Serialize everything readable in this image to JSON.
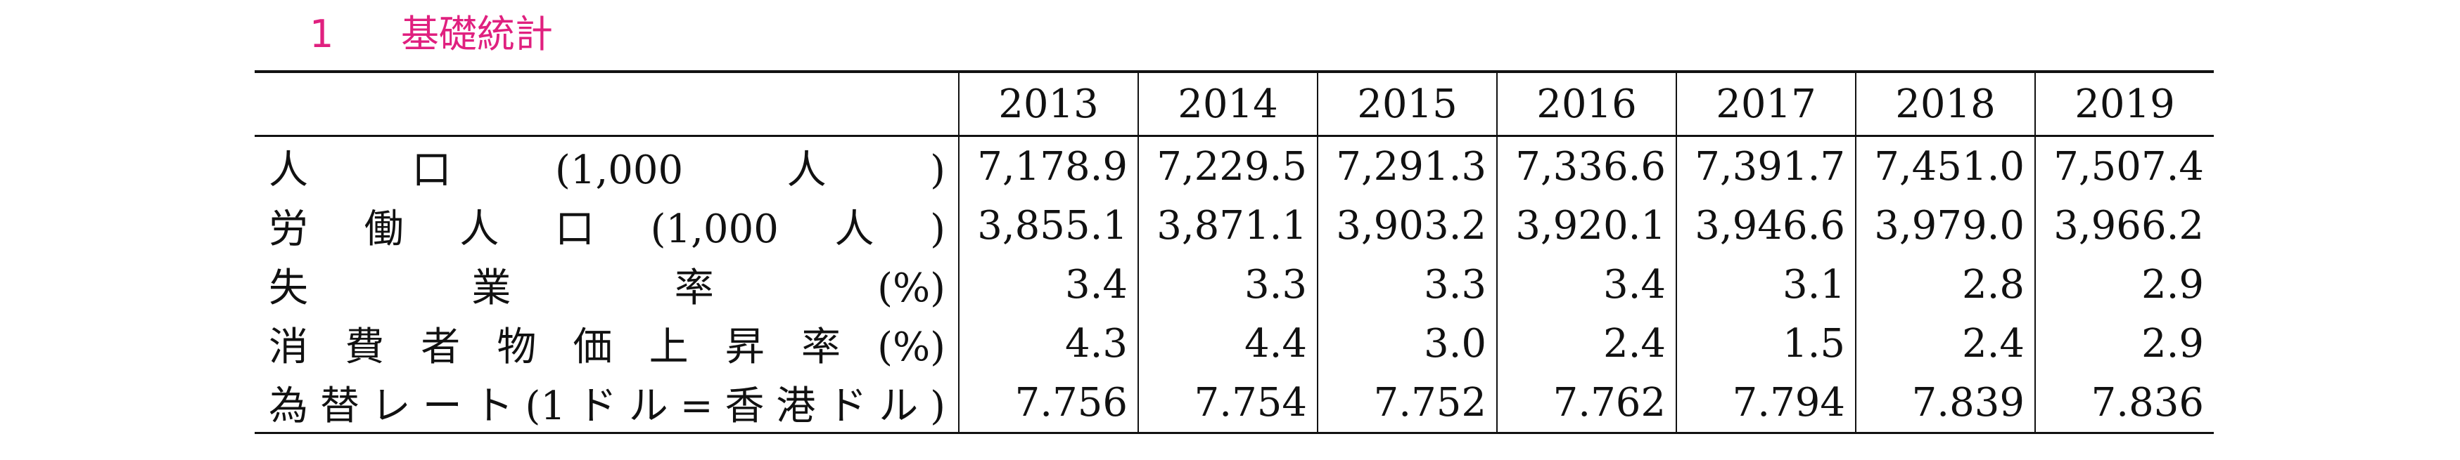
{
  "title": {
    "number": "1",
    "text": "基礎統計"
  },
  "table": {
    "columns": [
      "2013",
      "2014",
      "2015",
      "2016",
      "2017",
      "2018",
      "2019"
    ],
    "rows": [
      {
        "label": "人口(1,000人)",
        "values": [
          "7,178.9",
          "7,229.5",
          "7,291.3",
          "7,336.6",
          "7,391.7",
          "7,451.0",
          "7,507.4"
        ]
      },
      {
        "label": "労働人口(1,000人)",
        "values": [
          "3,855.1",
          "3,871.1",
          "3,903.2",
          "3,920.1",
          "3,946.6",
          "3,979.0",
          "3,966.2"
        ]
      },
      {
        "label": "失業率(%)",
        "values": [
          "3.4",
          "3.3",
          "3.3",
          "3.4",
          "3.1",
          "2.8",
          "2.9"
        ]
      },
      {
        "label": "消費者物価上昇率(%)",
        "values": [
          "4.3",
          "4.4",
          "3.0",
          "2.4",
          "1.5",
          "2.4",
          "2.9"
        ]
      },
      {
        "label": "為替レート(1ドル=香港ドル)",
        "values": [
          "7.756",
          "7.754",
          "7.752",
          "7.762",
          "7.794",
          "7.839",
          "7.836"
        ]
      }
    ]
  }
}
